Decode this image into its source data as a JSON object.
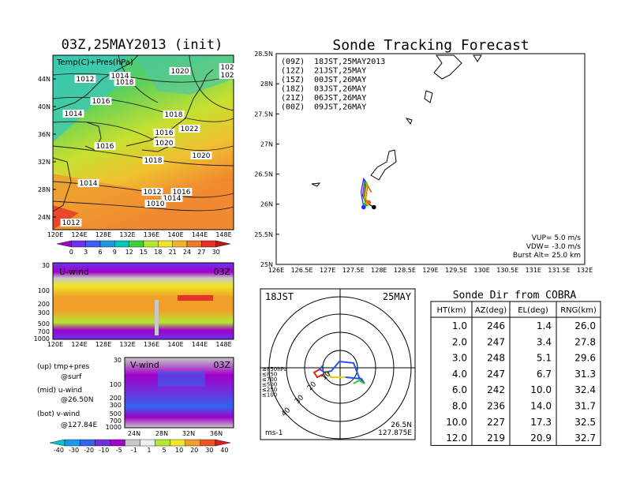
{
  "map_panel": {
    "title": "03Z,25MAY2013 (init)",
    "field_label": "Temp(C)+Pres(hPa)",
    "lat_ticks": [
      "44N",
      "40N",
      "36N",
      "32N",
      "28N",
      "24N"
    ],
    "lon_ticks": [
      "120E",
      "124E",
      "128E",
      "132E",
      "136E",
      "140E",
      "144E",
      "148E"
    ],
    "isobar_labels": [
      "1012",
      "1014",
      "1018",
      "1020",
      "1016",
      "1018",
      "1014",
      "1016",
      "1022",
      "1016",
      "1016",
      "1020",
      "1018",
      "1020",
      "1014",
      "1012",
      "1016",
      "1014",
      "1010",
      "1012",
      "102",
      "102"
    ],
    "colorbar_labels": [
      "0",
      "3",
      "6",
      "9",
      "12",
      "15",
      "18",
      "21",
      "24",
      "27",
      "30"
    ],
    "colorbar_colors": [
      "#a000c8",
      "#6e32f0",
      "#3c5ff5",
      "#1e96dc",
      "#00c8b4",
      "#3cd23c",
      "#b4e632",
      "#f0e628",
      "#f0b428",
      "#f07828",
      "#e63228",
      "#b41e1e"
    ]
  },
  "u_panel": {
    "label": "U-wind",
    "time": "03Z",
    "y_ticks": [
      "30",
      "100",
      "200",
      "300",
      "500",
      "700",
      "1000"
    ],
    "x_ticks": [
      "120E",
      "124E",
      "128E",
      "132E",
      "136E",
      "140E",
      "144E",
      "148E"
    ]
  },
  "v_panel": {
    "label": "V-wind",
    "time": "03Z",
    "y_ticks": [
      "30",
      "100",
      "200",
      "300",
      "500",
      "700",
      "1000"
    ],
    "x_ticks": [
      "24N",
      "28N",
      "32N",
      "36N"
    ]
  },
  "legend_notes": [
    "(up) tmp+pres",
    "@surf",
    "(mid) u-wind",
    "@26.50N",
    "(bot) v-wind",
    "@127.84E"
  ],
  "wind_colorbar": {
    "labels": [
      "-40",
      "-30",
      "-20",
      "-10",
      "-5",
      "-1",
      "1",
      "5",
      "10",
      "20",
      "30",
      "40"
    ],
    "colors": [
      "#00c8c8",
      "#1e96f0",
      "#3264f0",
      "#6e32dc",
      "#a000c8",
      "#c8c8c8",
      "#f0f0f0",
      "#b4e632",
      "#f0e628",
      "#f0a028",
      "#f05028",
      "#dc1e1e"
    ]
  },
  "track_panel": {
    "title": "Sonde Tracking Forecast",
    "lat_ticks": [
      "28.5N",
      "28N",
      "27.5N",
      "27N",
      "26.5N",
      "26N",
      "25.5N",
      "25N"
    ],
    "lon_ticks": [
      "126E",
      "126.5E",
      "127E",
      "127.5E",
      "128E",
      "128.5E",
      "129E",
      "129.5E",
      "130E",
      "130.5E",
      "131E",
      "131.5E",
      "132E"
    ],
    "launches": [
      {
        "tag": "(09Z)",
        "local": "18JST,25MAY2013",
        "color": "#000000"
      },
      {
        "tag": "(12Z)",
        "local": "21JST,25MAY",
        "color": "#b400c8"
      },
      {
        "tag": "(15Z)",
        "local": "00JST,26MAY",
        "color": "#2828ff"
      },
      {
        "tag": "(18Z)",
        "local": "03JST,26MAY",
        "color": "#00c800"
      },
      {
        "tag": "(21Z)",
        "local": "06JST,26MAY",
        "color": "#f0b400"
      },
      {
        "tag": "(00Z)",
        "local": "09JST,26MAY",
        "color": "#f06400"
      }
    ],
    "params": [
      "VUP= 5.0 m/s",
      "VDW= -3.0 m/s",
      "Burst Alt= 25.0 km"
    ]
  },
  "polar_panel": {
    "time": "18JST",
    "date": "25MAY",
    "ring_labels": [
      "10",
      "20",
      "30",
      "40"
    ],
    "speed_legend": [
      {
        "label": "≥850hPa",
        "color": "#e61e1e"
      },
      {
        "label": "≤850",
        "color": "#f0a000"
      },
      {
        "label": "≤700",
        "color": "#e6d200"
      },
      {
        "label": "≤500",
        "color": "#28c828"
      },
      {
        "label": "≤250",
        "color": "#00b4d2"
      },
      {
        "label": "≤100",
        "color": "#2850f0"
      }
    ],
    "units": "ms-1",
    "location_lat": "26.5N",
    "location_lon": "127.875E"
  },
  "cobra_table": {
    "title": "Sonde Dir from COBRA",
    "headers": [
      "HT(km)",
      "AZ(deg)",
      "EL(deg)",
      "RNG(km)"
    ],
    "rows": [
      [
        "1.0",
        "246",
        "1.4",
        "26.0"
      ],
      [
        "2.0",
        "247",
        "3.4",
        "27.8"
      ],
      [
        "3.0",
        "248",
        "5.1",
        "29.6"
      ],
      [
        "4.0",
        "247",
        "6.7",
        "31.3"
      ],
      [
        "6.0",
        "242",
        "10.0",
        "32.4"
      ],
      [
        "8.0",
        "236",
        "14.0",
        "31.7"
      ],
      [
        "10.0",
        "227",
        "17.3",
        "32.5"
      ],
      [
        "12.0",
        "219",
        "20.9",
        "32.7"
      ]
    ]
  },
  "chart_data": [
    {
      "type": "heatmap",
      "title": "03Z,25MAY2013 (init)",
      "subtitle": "Temp(C)+Pres(hPa)",
      "xlabel": "",
      "ylabel": "",
      "xlim": [
        "120E",
        "150E"
      ],
      "ylim": [
        "22N",
        "47N"
      ],
      "colorbar": [
        0,
        3,
        6,
        9,
        12,
        15,
        18,
        21,
        24,
        27,
        30
      ]
    },
    {
      "type": "heatmap",
      "title": "U-wind",
      "xlim": [
        "120E",
        "150E"
      ],
      "ylim_hPa": [
        1000,
        30
      ]
    },
    {
      "type": "heatmap",
      "title": "V-wind",
      "xlim": [
        "22N",
        "39N"
      ],
      "ylim_hPa": [
        1000,
        30
      ],
      "colorbar": [
        -40,
        -30,
        -20,
        -10,
        -5,
        -1,
        1,
        5,
        10,
        20,
        30,
        40
      ]
    },
    {
      "type": "line",
      "title": "Sonde Tracking Forecast",
      "xlim": [
        126,
        132
      ],
      "ylim": [
        25,
        28.5
      ],
      "series": [
        {
          "name": "(09Z) 18JST,25MAY2013",
          "x": [
            127.85,
            127.75,
            127.7,
            127.8,
            127.9
          ],
          "y": [
            26.2,
            26.35,
            26.1,
            26.0,
            25.95
          ]
        },
        {
          "name": "(12Z) 21JST,25MAY",
          "x": [
            127.85,
            127.72,
            127.68,
            127.75
          ],
          "y": [
            26.2,
            26.4,
            26.15,
            26.0
          ]
        },
        {
          "name": "(15Z) 00JST,26MAY",
          "x": [
            127.85,
            127.7,
            127.65,
            127.7
          ],
          "y": [
            26.2,
            26.42,
            26.2,
            25.95
          ]
        },
        {
          "name": "(18Z) 03JST,26MAY",
          "x": [
            127.85,
            127.74,
            127.7,
            127.75
          ],
          "y": [
            26.2,
            26.38,
            26.12,
            26.0
          ]
        },
        {
          "name": "(21Z) 06JST,26MAY",
          "x": [
            127.85,
            127.76,
            127.72,
            127.78
          ],
          "y": [
            26.2,
            26.33,
            26.1,
            26.02
          ]
        },
        {
          "name": "(00Z) 09JST,26MAY",
          "x": [
            127.85,
            127.78,
            127.74,
            127.8
          ],
          "y": [
            26.2,
            26.3,
            26.08,
            26.03
          ]
        }
      ]
    },
    {
      "type": "table",
      "title": "Sonde Dir from COBRA",
      "columns": [
        "HT(km)",
        "AZ(deg)",
        "EL(deg)",
        "RNG(km)"
      ],
      "rows": [
        [
          1.0,
          246,
          1.4,
          26.0
        ],
        [
          2.0,
          247,
          3.4,
          27.8
        ],
        [
          3.0,
          248,
          5.1,
          29.6
        ],
        [
          4.0,
          247,
          6.7,
          31.3
        ],
        [
          6.0,
          242,
          10.0,
          32.4
        ],
        [
          8.0,
          236,
          14.0,
          31.7
        ],
        [
          10.0,
          227,
          17.3,
          32.5
        ],
        [
          12.0,
          219,
          20.9,
          32.7
        ]
      ]
    }
  ]
}
